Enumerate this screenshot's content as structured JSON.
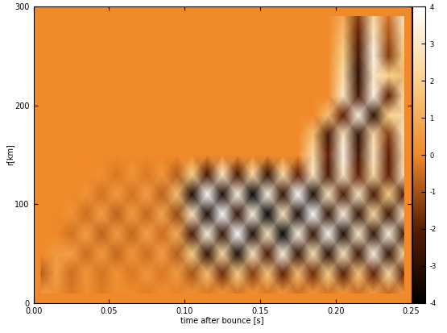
{
  "chart_data": {
    "type": "heatmap",
    "x_label": "time after bounce [s]",
    "y_label": "r[km]",
    "x": [
      0.005,
      0.015,
      0.025,
      0.035,
      0.045,
      0.055,
      0.065,
      0.075,
      0.085,
      0.095,
      0.105,
      0.115,
      0.125,
      0.135,
      0.145,
      0.155,
      0.165,
      0.175,
      0.185,
      0.195,
      0.205,
      0.215,
      0.225,
      0.235,
      0.245
    ],
    "y": [
      10,
      30,
      50,
      70,
      90,
      110,
      130,
      150,
      170,
      190,
      210,
      230,
      250,
      270,
      290
    ],
    "xlim": [
      0,
      0.25
    ],
    "ylim": [
      0,
      300
    ],
    "xticks": [
      {
        "value": 0,
        "label": "0.00"
      },
      {
        "value": 0.05,
        "label": "0.05"
      },
      {
        "value": 0.1,
        "label": "0.10"
      },
      {
        "value": 0.15,
        "label": "0.15"
      },
      {
        "value": 0.2,
        "label": "0.20"
      },
      {
        "value": 0.25,
        "label": "0.25"
      }
    ],
    "yticks": [
      0,
      100,
      200,
      300
    ],
    "color_range": [
      -4,
      4
    ],
    "color_ticks": [
      -4,
      -3,
      -2,
      -1,
      0,
      1,
      2,
      3,
      4
    ],
    "cells": [
      [
        0.5,
        0.3,
        -0.3,
        0.2,
        -0.2,
        0.2,
        0.1,
        -0.2,
        0.2,
        -0.1,
        0.3,
        -0.3,
        0.4,
        -0.4,
        0.3,
        -0.3,
        0.5,
        -0.5,
        0.4,
        -0.4,
        0.5,
        -0.5,
        0.6,
        -0.6,
        0.5
      ],
      [
        -0.8,
        0.6,
        -0.5,
        0.4,
        -0.4,
        0.3,
        -0.3,
        0.4,
        -0.3,
        0.5,
        -1.0,
        1.5,
        -1.8,
        2.0,
        -1.5,
        1.8,
        -2.0,
        1.5,
        -1.8,
        2.0,
        -2.2,
        1.8,
        -2.0,
        2.5,
        -2.0
      ],
      [
        0,
        0.5,
        0.6,
        -0.5,
        0.5,
        -0.6,
        0.4,
        -0.5,
        0.6,
        -0.8,
        2.0,
        -3.0,
        2.5,
        -3.5,
        3.0,
        -2.5,
        3.5,
        -3.0,
        2.8,
        -3.2,
        3.0,
        -2.8,
        3.5,
        -3.0,
        2.5
      ],
      [
        0,
        0,
        -0.4,
        0.6,
        -0.7,
        0.5,
        -0.6,
        0.7,
        -0.5,
        1.0,
        -2.5,
        3.5,
        -3.0,
        4.0,
        -3.5,
        3.0,
        -4.0,
        3.5,
        -3.0,
        3.8,
        -3.5,
        3.2,
        -3.0,
        3.5,
        -2.8
      ],
      [
        0,
        0,
        0.3,
        -0.5,
        0.6,
        -0.7,
        0.5,
        -0.6,
        0.8,
        -1.2,
        3.0,
        -3.5,
        4.0,
        -3.0,
        3.5,
        -4.0,
        3.0,
        -3.5,
        4.0,
        -3.0,
        3.5,
        -3.0,
        2.5,
        -2.8,
        3.0
      ],
      [
        0,
        0,
        0,
        0.3,
        -0.4,
        0.5,
        -0.4,
        0.6,
        -0.7,
        1.5,
        -3.5,
        4.0,
        -3.5,
        3.5,
        -4.0,
        3.5,
        -3.0,
        4.0,
        -3.5,
        3.0,
        -2.5,
        3.0,
        -2.5,
        2.0,
        -2.5
      ],
      [
        0,
        0,
        0,
        0,
        0.2,
        -0.3,
        0.3,
        -0.3,
        0.4,
        -0.8,
        2.0,
        -2.5,
        3.0,
        -2.5,
        2.5,
        -3.0,
        2.5,
        -2.0,
        3.0,
        -2.5,
        3.0,
        -2.0,
        2.5,
        -2.0,
        3.0
      ],
      [
        0,
        0,
        0,
        0,
        0,
        0,
        0,
        0,
        0,
        0,
        0,
        0,
        0,
        0,
        0,
        0,
        0,
        0,
        2.5,
        -2.0,
        3.5,
        -2.5,
        3.0,
        -2.0,
        2.5
      ],
      [
        0,
        0,
        0,
        0,
        0,
        0,
        0,
        0,
        0,
        0,
        0,
        0,
        0,
        0,
        0,
        0,
        0,
        0,
        1.5,
        -2.5,
        3.0,
        -3.0,
        2.5,
        -1.5,
        3.0
      ],
      [
        0,
        0,
        0,
        0,
        0,
        0,
        0,
        0,
        0,
        0,
        0,
        0,
        0,
        0,
        0,
        0,
        0,
        0,
        0,
        1.5,
        -2.0,
        3.5,
        -3.0,
        2.0,
        2.5
      ],
      [
        0,
        0,
        0,
        0,
        0,
        0,
        0,
        0,
        0,
        0,
        0,
        0,
        0,
        0,
        0,
        0,
        0,
        0,
        0,
        0,
        3.0,
        -2.5,
        3.5,
        -2.0,
        2.5
      ],
      [
        0,
        0,
        0,
        0,
        0,
        0,
        0,
        0,
        0,
        0,
        0,
        0,
        0,
        0,
        0,
        0,
        0,
        0,
        0,
        0,
        2.5,
        -3.0,
        3.0,
        2.0,
        1.5
      ],
      [
        0,
        0,
        0,
        0,
        0,
        0,
        0,
        0,
        0,
        0,
        0,
        0,
        0,
        0,
        0,
        0,
        0,
        0,
        0,
        0,
        2.0,
        -2.5,
        3.5,
        -1.5,
        2.0
      ],
      [
        0,
        0,
        0,
        0,
        0,
        0,
        0,
        0,
        0,
        0,
        0,
        0,
        0,
        0,
        0,
        0,
        0,
        0,
        0,
        0,
        1.5,
        -2.0,
        3.0,
        -1.0,
        2.5
      ],
      [
        0,
        0,
        0,
        0,
        0,
        0,
        0,
        0,
        0,
        0,
        0,
        0,
        0,
        0,
        0,
        0,
        0,
        0,
        0,
        0,
        1.0,
        -1.5,
        2.5,
        -0.5,
        3.0
      ]
    ]
  }
}
